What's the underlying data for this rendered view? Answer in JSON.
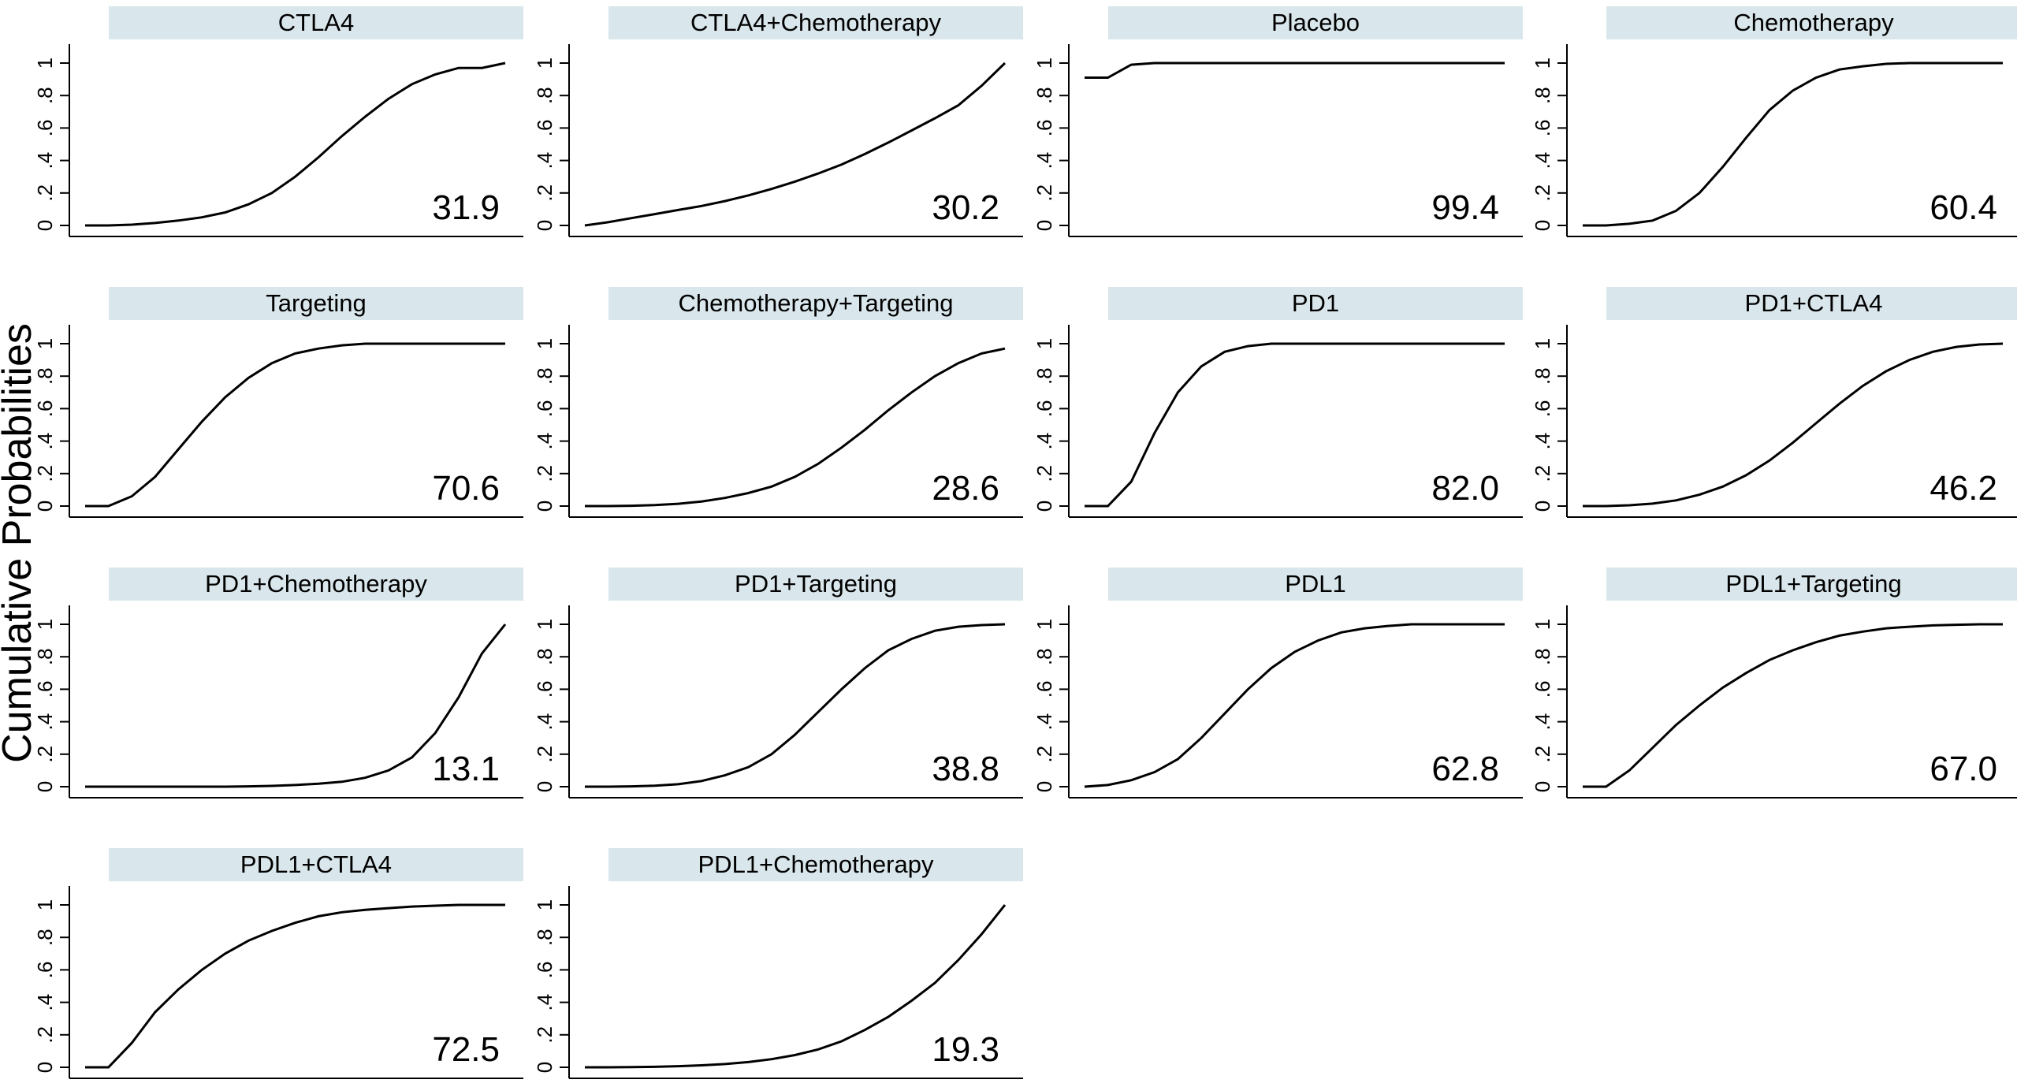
{
  "figure": {
    "ylabel": "Cumulative Probabilities"
  },
  "chart_data": [
    {
      "type": "line",
      "title": "CTLA4",
      "sucra": "31.9",
      "ylim": [
        0,
        1
      ],
      "yticks": [
        "0",
        ".2",
        ".4",
        ".6",
        ".8",
        "1"
      ],
      "x": [
        1,
        2,
        3,
        4,
        5,
        6,
        7,
        8,
        9,
        10,
        11,
        12,
        13,
        14,
        15,
        16,
        17,
        18,
        19
      ],
      "values": [
        0,
        0,
        0.005,
        0.015,
        0.03,
        0.05,
        0.08,
        0.13,
        0.2,
        0.3,
        0.42,
        0.55,
        0.67,
        0.78,
        0.87,
        0.93,
        0.97,
        0.97,
        1.0
      ]
    },
    {
      "type": "line",
      "title": "CTLA4+Chemotherapy",
      "sucra": "30.2",
      "ylim": [
        0,
        1
      ],
      "yticks": [
        "0",
        ".2",
        ".4",
        ".6",
        ".8",
        "1"
      ],
      "x": [
        1,
        2,
        3,
        4,
        5,
        6,
        7,
        8,
        9,
        10,
        11,
        12,
        13,
        14,
        15,
        16,
        17,
        18,
        19
      ],
      "values": [
        0,
        0.02,
        0.045,
        0.07,
        0.095,
        0.12,
        0.15,
        0.185,
        0.225,
        0.27,
        0.32,
        0.375,
        0.44,
        0.51,
        0.585,
        0.66,
        0.74,
        0.86,
        1.0
      ]
    },
    {
      "type": "line",
      "title": "Placebo",
      "sucra": "99.4",
      "ylim": [
        0,
        1
      ],
      "yticks": [
        "0",
        ".2",
        ".4",
        ".6",
        ".8",
        "1"
      ],
      "x": [
        1,
        2,
        3,
        4,
        5,
        6,
        7,
        8,
        9,
        10,
        11,
        12,
        13,
        14,
        15,
        16,
        17,
        18,
        19
      ],
      "values": [
        0.91,
        0.91,
        0.99,
        1,
        1,
        1,
        1,
        1,
        1,
        1,
        1,
        1,
        1,
        1,
        1,
        1,
        1,
        1,
        1
      ]
    },
    {
      "type": "line",
      "title": "Chemotherapy",
      "sucra": "60.4",
      "ylim": [
        0,
        1
      ],
      "yticks": [
        "0",
        ".2",
        ".4",
        ".6",
        ".8",
        "1"
      ],
      "x": [
        1,
        2,
        3,
        4,
        5,
        6,
        7,
        8,
        9,
        10,
        11,
        12,
        13,
        14,
        15,
        16,
        17,
        18,
        19
      ],
      "values": [
        0,
        0,
        0.01,
        0.03,
        0.09,
        0.2,
        0.36,
        0.54,
        0.71,
        0.83,
        0.91,
        0.96,
        0.98,
        0.995,
        1,
        1,
        1,
        1,
        1
      ]
    },
    {
      "type": "line",
      "title": "Targeting",
      "sucra": "70.6",
      "ylim": [
        0,
        1
      ],
      "yticks": [
        "0",
        ".2",
        ".4",
        ".6",
        ".8",
        "1"
      ],
      "x": [
        1,
        2,
        3,
        4,
        5,
        6,
        7,
        8,
        9,
        10,
        11,
        12,
        13,
        14,
        15,
        16,
        17,
        18,
        19
      ],
      "values": [
        0,
        0,
        0.06,
        0.18,
        0.35,
        0.52,
        0.67,
        0.79,
        0.88,
        0.94,
        0.97,
        0.99,
        1,
        1,
        1,
        1,
        1,
        1,
        1
      ]
    },
    {
      "type": "line",
      "title": "Chemotherapy+Targeting",
      "sucra": "28.6",
      "ylim": [
        0,
        1
      ],
      "yticks": [
        "0",
        ".2",
        ".4",
        ".6",
        ".8",
        "1"
      ],
      "x": [
        1,
        2,
        3,
        4,
        5,
        6,
        7,
        8,
        9,
        10,
        11,
        12,
        13,
        14,
        15,
        16,
        17,
        18,
        19
      ],
      "values": [
        0,
        0,
        0.002,
        0.006,
        0.014,
        0.028,
        0.05,
        0.08,
        0.12,
        0.18,
        0.26,
        0.36,
        0.47,
        0.59,
        0.7,
        0.8,
        0.88,
        0.94,
        0.97
      ]
    },
    {
      "type": "line",
      "title": "PD1",
      "sucra": "82.0",
      "ylim": [
        0,
        1
      ],
      "yticks": [
        "0",
        ".2",
        ".4",
        ".6",
        ".8",
        "1"
      ],
      "x": [
        1,
        2,
        3,
        4,
        5,
        6,
        7,
        8,
        9,
        10,
        11,
        12,
        13,
        14,
        15,
        16,
        17,
        18,
        19
      ],
      "values": [
        0,
        0,
        0.15,
        0.45,
        0.7,
        0.86,
        0.95,
        0.985,
        1,
        1,
        1,
        1,
        1,
        1,
        1,
        1,
        1,
        1,
        1
      ]
    },
    {
      "type": "line",
      "title": "PD1+CTLA4",
      "sucra": "46.2",
      "ylim": [
        0,
        1
      ],
      "yticks": [
        "0",
        ".2",
        ".4",
        ".6",
        ".8",
        "1"
      ],
      "x": [
        1,
        2,
        3,
        4,
        5,
        6,
        7,
        8,
        9,
        10,
        11,
        12,
        13,
        14,
        15,
        16,
        17,
        18,
        19
      ],
      "values": [
        0,
        0,
        0.005,
        0.015,
        0.035,
        0.07,
        0.12,
        0.19,
        0.28,
        0.39,
        0.51,
        0.63,
        0.74,
        0.83,
        0.9,
        0.95,
        0.98,
        0.995,
        1
      ]
    },
    {
      "type": "line",
      "title": "PD1+Chemotherapy",
      "sucra": "13.1",
      "ylim": [
        0,
        1
      ],
      "yticks": [
        "0",
        ".2",
        ".4",
        ".6",
        ".8",
        "1"
      ],
      "x": [
        1,
        2,
        3,
        4,
        5,
        6,
        7,
        8,
        9,
        10,
        11,
        12,
        13,
        14,
        15,
        16,
        17,
        18,
        19
      ],
      "values": [
        0,
        0,
        0,
        0,
        0,
        0,
        0,
        0.002,
        0.005,
        0.01,
        0.018,
        0.03,
        0.055,
        0.1,
        0.18,
        0.33,
        0.55,
        0.82,
        1.0
      ]
    },
    {
      "type": "line",
      "title": "PD1+Targeting",
      "sucra": "38.8",
      "ylim": [
        0,
        1
      ],
      "yticks": [
        "0",
        ".2",
        ".4",
        ".6",
        ".8",
        "1"
      ],
      "x": [
        1,
        2,
        3,
        4,
        5,
        6,
        7,
        8,
        9,
        10,
        11,
        12,
        13,
        14,
        15,
        16,
        17,
        18,
        19
      ],
      "values": [
        0,
        0,
        0.002,
        0.006,
        0.015,
        0.035,
        0.07,
        0.12,
        0.2,
        0.32,
        0.46,
        0.6,
        0.73,
        0.84,
        0.91,
        0.96,
        0.985,
        0.995,
        1
      ]
    },
    {
      "type": "line",
      "title": "PDL1",
      "sucra": "62.8",
      "ylim": [
        0,
        1
      ],
      "yticks": [
        "0",
        ".2",
        ".4",
        ".6",
        ".8",
        "1"
      ],
      "x": [
        1,
        2,
        3,
        4,
        5,
        6,
        7,
        8,
        9,
        10,
        11,
        12,
        13,
        14,
        15,
        16,
        17,
        18,
        19
      ],
      "values": [
        0,
        0.01,
        0.04,
        0.09,
        0.17,
        0.3,
        0.45,
        0.6,
        0.73,
        0.83,
        0.9,
        0.95,
        0.975,
        0.99,
        1,
        1,
        1,
        1,
        1
      ]
    },
    {
      "type": "line",
      "title": "PDL1+Targeting",
      "sucra": "67.0",
      "ylim": [
        0,
        1
      ],
      "yticks": [
        "0",
        ".2",
        ".4",
        ".6",
        ".8",
        "1"
      ],
      "x": [
        1,
        2,
        3,
        4,
        5,
        6,
        7,
        8,
        9,
        10,
        11,
        12,
        13,
        14,
        15,
        16,
        17,
        18,
        19
      ],
      "values": [
        0,
        0,
        0.1,
        0.24,
        0.38,
        0.5,
        0.61,
        0.7,
        0.78,
        0.84,
        0.89,
        0.93,
        0.955,
        0.975,
        0.985,
        0.993,
        0.997,
        1,
        1
      ]
    },
    {
      "type": "line",
      "title": "PDL1+CTLA4",
      "sucra": "72.5",
      "ylim": [
        0,
        1
      ],
      "yticks": [
        "0",
        ".2",
        ".4",
        ".6",
        ".8",
        "1"
      ],
      "x": [
        1,
        2,
        3,
        4,
        5,
        6,
        7,
        8,
        9,
        10,
        11,
        12,
        13,
        14,
        15,
        16,
        17,
        18,
        19
      ],
      "values": [
        0,
        0,
        0.15,
        0.34,
        0.48,
        0.6,
        0.7,
        0.78,
        0.84,
        0.89,
        0.93,
        0.955,
        0.97,
        0.98,
        0.99,
        0.995,
        1,
        1,
        1
      ]
    },
    {
      "type": "line",
      "title": "PDL1+Chemotherapy",
      "sucra": "19.3",
      "ylim": [
        0,
        1
      ],
      "yticks": [
        "0",
        ".2",
        ".4",
        ".6",
        ".8",
        "1"
      ],
      "x": [
        1,
        2,
        3,
        4,
        5,
        6,
        7,
        8,
        9,
        10,
        11,
        12,
        13,
        14,
        15,
        16,
        17,
        18,
        19
      ],
      "values": [
        0,
        0,
        0.001,
        0.003,
        0.007,
        0.012,
        0.02,
        0.032,
        0.05,
        0.075,
        0.11,
        0.16,
        0.23,
        0.31,
        0.41,
        0.52,
        0.66,
        0.82,
        1.0
      ]
    }
  ]
}
